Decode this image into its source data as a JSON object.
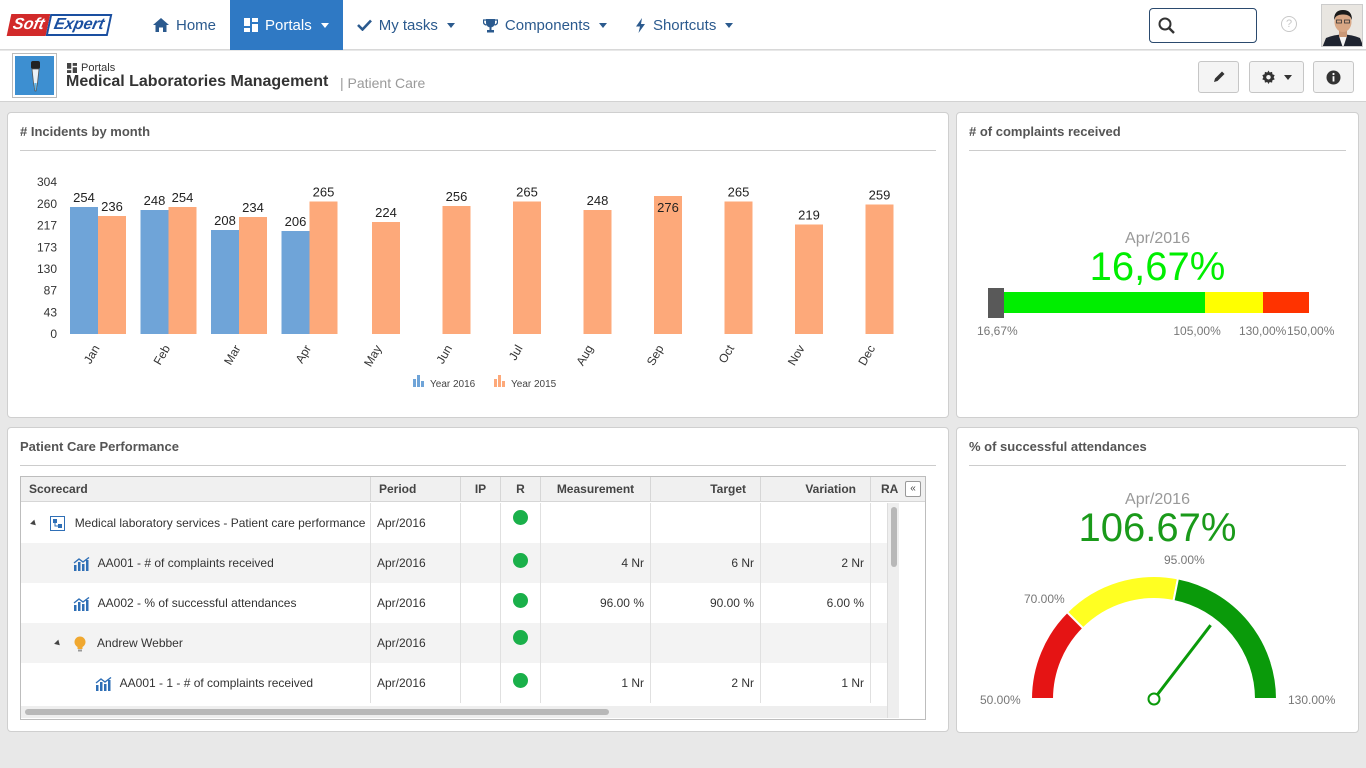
{
  "brand": {
    "soft": "Soft",
    "expert": "Expert"
  },
  "nav": {
    "home": "Home",
    "portals": "Portals",
    "my_tasks": "My tasks",
    "components": "Components",
    "shortcuts": "Shortcuts"
  },
  "search": {
    "value": "",
    "placeholder": ""
  },
  "help_label": "?",
  "header": {
    "breadcrumb": "Portals",
    "title": "Medical Laboratories Management",
    "subtitle": "| Patient Care"
  },
  "colors": {
    "accent": "#2f79c4",
    "series_2016": "#6fa4d8",
    "series_2015": "#fda97a",
    "good": "#1ab04a",
    "gauge_green": "#00ee00",
    "gauge_yellow": "#ffff00",
    "gauge_red": "#ff3300"
  },
  "incidents": {
    "title": "# Incidents by month",
    "chart_data": {
      "type": "bar",
      "title": "# Incidents by month",
      "categories": [
        "Jan",
        "Feb",
        "Mar",
        "Apr",
        "May",
        "Jun",
        "Jul",
        "Aug",
        "Sep",
        "Oct",
        "Nov",
        "Dec"
      ],
      "series": [
        {
          "name": "Year 2016",
          "values": [
            254,
            248,
            208,
            206,
            null,
            null,
            null,
            null,
            null,
            null,
            null,
            null
          ]
        },
        {
          "name": "Year 2015",
          "values": [
            236,
            254,
            234,
            265,
            224,
            256,
            265,
            248,
            276,
            265,
            219,
            259
          ]
        }
      ],
      "yticks": [
        "0",
        "43",
        "87",
        "130",
        "173",
        "217",
        "260",
        "304"
      ],
      "ylim": [
        0,
        304
      ],
      "legend": "bottom-center"
    }
  },
  "complaints": {
    "title": "# of complaints received",
    "period": "Apr/2016",
    "value": "16,67%",
    "value_color": "#00ee00",
    "scale_labels": [
      "16,67%",
      "105,00%",
      "130,00%",
      "150,00%"
    ],
    "scale": {
      "min": 16.67,
      "max": 150,
      "current": 16.67,
      "yellow_from": 105,
      "red_from": 130
    }
  },
  "attendances": {
    "title": "% of successful attendances",
    "period": "Apr/2016",
    "value": "106.67%",
    "value_color": "#1a9a1a",
    "labels": {
      "min": "50.00%",
      "low": "70.00%",
      "high": "95.00%",
      "max": "130.00%"
    },
    "gauge": {
      "min": 50,
      "max": 130,
      "low": 70,
      "high": 95,
      "current": 106.67
    }
  },
  "performance": {
    "title": "Patient Care Performance",
    "columns": [
      "Scorecard",
      "Period",
      "IP",
      "R",
      "Measurement",
      "Target",
      "Variation",
      "RA"
    ],
    "rows": [
      {
        "name": "Medical laboratory services - Patient care performance",
        "period": "Apr/2016",
        "measurement": "",
        "target": "",
        "variation": ""
      },
      {
        "name": "AA001 - # of complaints received",
        "period": "Apr/2016",
        "measurement": "4 Nr",
        "target": "6 Nr",
        "variation": "2 Nr"
      },
      {
        "name": "AA002 - % of successful attendances",
        "period": "Apr/2016",
        "measurement": "96.00 %",
        "target": "90.00 %",
        "variation": "6.00 %"
      },
      {
        "name": "Andrew Webber",
        "period": "Apr/2016",
        "measurement": "",
        "target": "",
        "variation": ""
      },
      {
        "name": "AA001 - 1 - # of complaints received",
        "period": "Apr/2016",
        "measurement": "1 Nr",
        "target": "2 Nr",
        "variation": "1 Nr"
      }
    ]
  }
}
